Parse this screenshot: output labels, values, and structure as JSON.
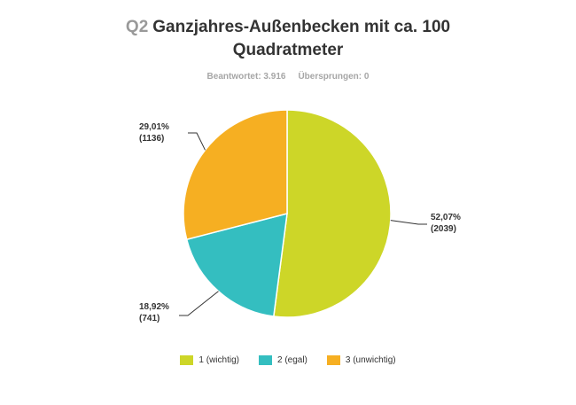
{
  "header": {
    "question_number": "Q2",
    "title_line1": "Ganzjahres-Außenbecken mit ca. 100",
    "title_line2": "Quadratmeter"
  },
  "stats": {
    "answered": "Beantwortet: 3.916",
    "skipped": "Übersprungen: 0"
  },
  "chart_data": {
    "type": "pie",
    "title": "Ganzjahres-Außenbecken mit ca. 100 Quadratmeter",
    "slices": [
      {
        "label": "1 (wichtig)",
        "percent": 52.07,
        "count": 2039,
        "pct_label": "52,07%",
        "count_label": "(2039)",
        "color": "#cdd628"
      },
      {
        "label": "2 (egal)",
        "percent": 18.92,
        "count": 741,
        "pct_label": "18,92%",
        "count_label": "(741)",
        "color": "#34bec0"
      },
      {
        "label": "3 (unwichtig)",
        "percent": 29.01,
        "count": 1136,
        "pct_label": "29,01%",
        "count_label": "(1136)",
        "color": "#f6af22"
      }
    ],
    "legend_position": "bottom"
  }
}
